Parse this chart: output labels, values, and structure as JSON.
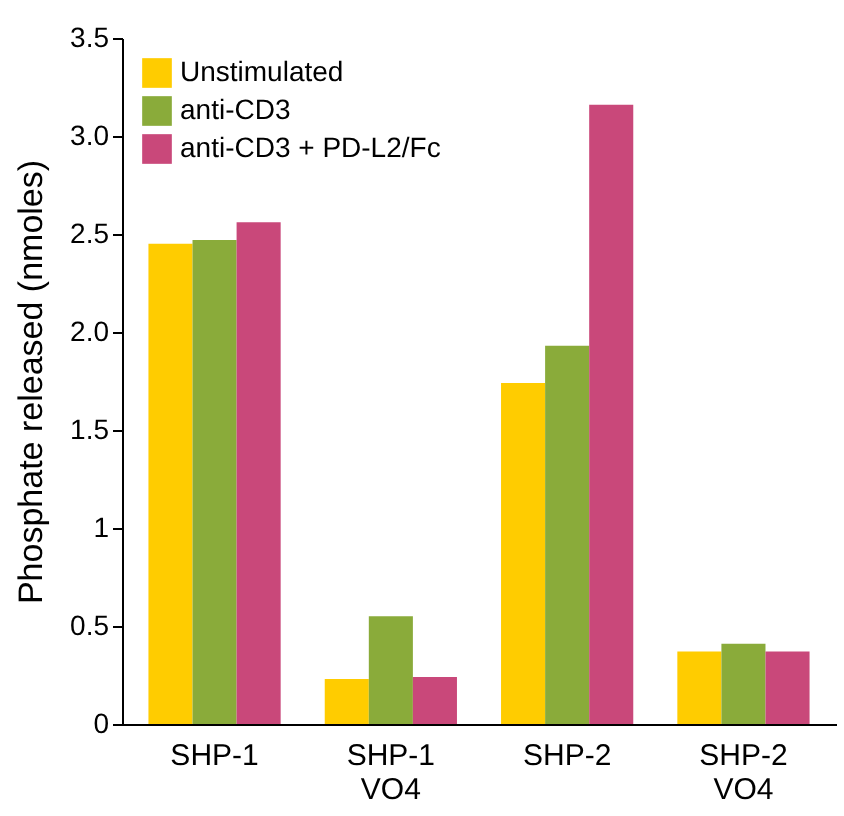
{
  "chart_data": {
    "type": "bar",
    "ylabel": "Phosphate released (nmoles)",
    "categories": [
      "SHP-1",
      "SHP-1 VO4",
      "SHP-2",
      "SHP-2 VO4"
    ],
    "series": [
      {
        "name": "Unstimulated",
        "color": "#ffcc00",
        "values": [
          2.45,
          0.23,
          1.74,
          0.37
        ]
      },
      {
        "name": "anti-CD3",
        "color": "#8aab3a",
        "values": [
          2.47,
          0.55,
          1.93,
          0.41
        ]
      },
      {
        "name": "anti-CD3 + PD-L2/Fc",
        "color": "#c9487a",
        "values": [
          2.56,
          0.24,
          3.16,
          0.37
        ]
      }
    ],
    "ylim": [
      0,
      3.5
    ],
    "yticks": [
      0,
      0.5,
      1,
      1.5,
      {
        "value": 2,
        "label": "2.0"
      },
      {
        "value": 2.5,
        "label": "2.5"
      },
      {
        "value": 3,
        "label": "3.0"
      },
      {
        "value": 3.5,
        "label": "3.5"
      }
    ],
    "grid": false,
    "legend": "top left"
  }
}
